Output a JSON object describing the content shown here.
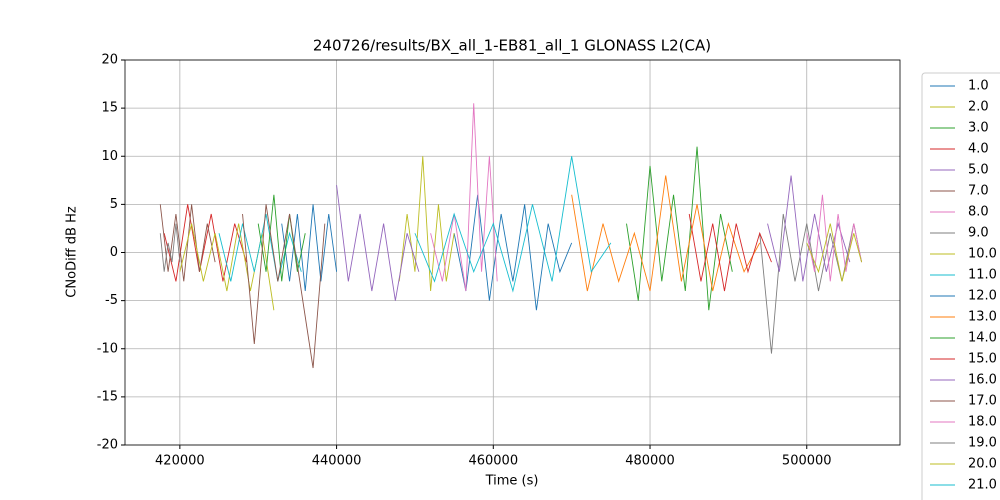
{
  "chart_data": {
    "type": "line",
    "title": "240726/results/BX_all_1-EB81_all_1 GLONASS L2(CA)",
    "xlabel": "Time (s)",
    "ylabel": "CNoDiff dB Hz",
    "xlim": [
      413000,
      511900
    ],
    "ylim": [
      -20,
      20
    ],
    "xticks": [
      420000,
      440000,
      460000,
      480000,
      500000
    ],
    "yticks": [
      -20,
      -15,
      -10,
      -5,
      0,
      5,
      10,
      15,
      20
    ],
    "grid": true,
    "legend": "outside right",
    "series": [
      {
        "name": "1.0",
        "color": "#1f77b4",
        "x": [
          455000,
          456500,
          458000,
          459500,
          461000,
          462500,
          464000,
          465500,
          467000,
          468500,
          470000
        ],
        "values": [
          2,
          -4,
          6,
          -5,
          4,
          -3,
          5,
          -6,
          3,
          -2,
          1
        ]
      },
      {
        "name": "2.0",
        "color": "#bcbd22",
        "x": [
          448000,
          449000,
          450000,
          451000,
          452000,
          453000,
          454000,
          455000
        ],
        "values": [
          -3,
          4,
          -2,
          10,
          -4,
          5,
          -3,
          2
        ]
      },
      {
        "name": "3.0",
        "color": "#2ca02c",
        "x": [
          477000,
          478500,
          480000,
          481500,
          483000,
          484500,
          486000,
          487500,
          489000,
          490500
        ],
        "values": [
          3,
          -5,
          9,
          -3,
          6,
          -4,
          11,
          -6,
          4,
          -2
        ]
      },
      {
        "name": "4.0",
        "color": "#d62728",
        "x": [
          418000,
          419500,
          421000,
          422500,
          424000,
          425500,
          427000,
          428500
        ],
        "values": [
          2,
          -3,
          5,
          -2,
          4,
          -3,
          3,
          -1
        ]
      },
      {
        "name": "5.0",
        "color": "#9467bd",
        "x": [
          440000,
          441500,
          443000,
          444500,
          446000,
          447500,
          449000,
          450500
        ],
        "values": [
          7,
          -3,
          4,
          -4,
          3,
          -5,
          2,
          -2
        ]
      },
      {
        "name": "7.0",
        "color": "#8c564b",
        "x": [
          417500,
          418500,
          419500,
          420500,
          421500,
          422500,
          423500,
          424500
        ],
        "values": [
          5,
          -2,
          4,
          -3,
          5,
          -2,
          3,
          -1
        ]
      },
      {
        "name": "8.0",
        "color": "#e377c2",
        "x": [
          452000,
          453500,
          455000,
          456500,
          457500,
          458500,
          459500,
          460500
        ],
        "values": [
          2,
          -3,
          4,
          -4,
          15.5,
          -2,
          10,
          -3
        ]
      },
      {
        "name": "9.0",
        "color": "#7f7f7f",
        "x": [
          494000,
          495500,
          497000,
          498500,
          500000,
          501500,
          503000,
          504500,
          506000,
          507000
        ],
        "values": [
          2,
          -10.5,
          4,
          -3,
          3,
          -4,
          2,
          -3,
          3,
          -1
        ]
      },
      {
        "name": "10.0",
        "color": "#bcbd22",
        "x": [
          420000,
          421500,
          423000,
          424500,
          426000,
          427500,
          429000,
          430500,
          432000
        ],
        "values": [
          -2,
          3,
          -3,
          2,
          -4,
          3,
          -4,
          2,
          -6
        ]
      },
      {
        "name": "11.0",
        "color": "#17becf",
        "x": [
          425000,
          426500,
          428000,
          429500,
          431000,
          432500,
          434000,
          435500
        ],
        "values": [
          2,
          -3,
          3,
          -2,
          4,
          -3,
          2,
          -2
        ]
      },
      {
        "name": "12.0",
        "color": "#1f77b4",
        "x": [
          433000,
          434000,
          435000,
          436000,
          437000,
          438000,
          439000,
          440000
        ],
        "values": [
          3,
          -3,
          4,
          -4,
          5,
          -3,
          4,
          -2
        ]
      },
      {
        "name": "13.0",
        "color": "#ff7f0e",
        "x": [
          470000,
          472000,
          474000,
          476000,
          478000,
          480000,
          482000,
          484000,
          486000,
          488000,
          490000,
          492000,
          494000
        ],
        "values": [
          6,
          -4,
          3,
          -3,
          2,
          -4,
          8,
          -3,
          5,
          -4,
          3,
          -2,
          1
        ]
      },
      {
        "name": "14.0",
        "color": "#2ca02c",
        "x": [
          430000,
          431000,
          432000,
          433000,
          434000,
          435000,
          436000
        ],
        "values": [
          3,
          -2,
          6,
          -3,
          4,
          -2,
          2
        ]
      },
      {
        "name": "15.0",
        "color": "#d62728",
        "x": [
          485000,
          486500,
          488000,
          489500,
          491000,
          492500,
          494000,
          495500
        ],
        "values": [
          4,
          -3,
          3,
          -4,
          3,
          -2,
          2,
          -1
        ]
      },
      {
        "name": "16.0",
        "color": "#9467bd",
        "x": [
          495000,
          496500,
          498000,
          499500,
          501000,
          502500,
          504000,
          505500
        ],
        "values": [
          3,
          -2,
          8,
          -3,
          4,
          -2,
          3,
          -1
        ]
      },
      {
        "name": "17.0",
        "color": "#8c564b",
        "x": [
          428000,
          429500,
          431000,
          432500,
          434000,
          435500,
          437000,
          438500
        ],
        "values": [
          4,
          -9.5,
          5,
          -3,
          4,
          -4,
          -12,
          3
        ]
      },
      {
        "name": "18.0",
        "color": "#e377c2",
        "x": [
          500000,
          501000,
          502000,
          503000,
          504000,
          505000,
          506000,
          507000
        ],
        "values": [
          2,
          -2,
          6,
          -3,
          4,
          -2,
          3,
          -1
        ]
      },
      {
        "name": "19.0",
        "color": "#7f7f7f",
        "x": [
          417500,
          418000,
          418500,
          419000,
          419500,
          420000
        ],
        "values": [
          2,
          -2,
          1,
          -1,
          3,
          -1
        ]
      },
      {
        "name": "20.0",
        "color": "#bcbd22",
        "x": [
          500000,
          501500,
          503000,
          504500,
          506000,
          507000
        ],
        "values": [
          1,
          -2,
          3,
          -3,
          2,
          -1
        ]
      },
      {
        "name": "21.0",
        "color": "#17becf",
        "x": [
          450000,
          452500,
          455000,
          457500,
          460000,
          462500,
          465000,
          467500,
          470000,
          472500,
          475000
        ],
        "values": [
          2,
          -3,
          4,
          -2,
          3,
          -4,
          5,
          -3,
          10,
          -2,
          1
        ]
      }
    ]
  }
}
